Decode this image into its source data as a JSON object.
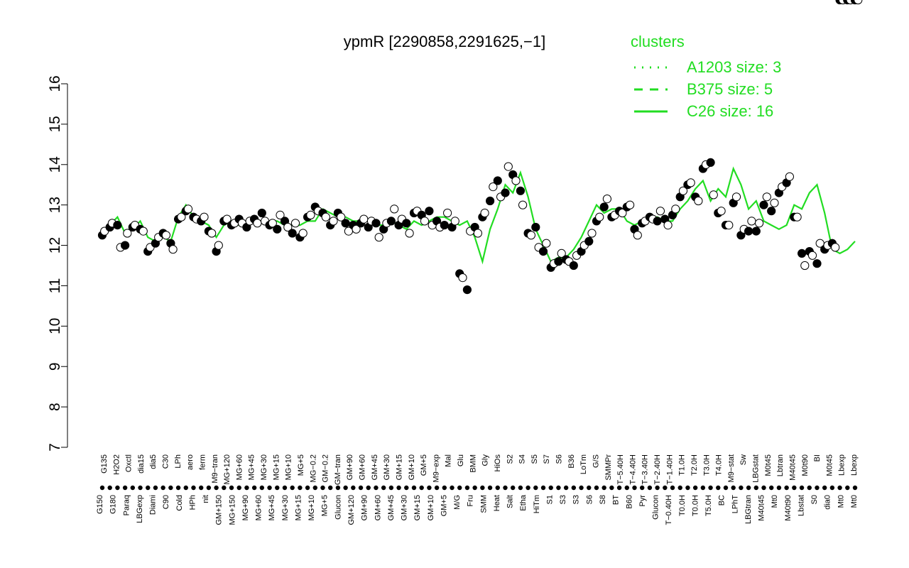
{
  "chart_data": {
    "type": "line",
    "title": "ypmR [2290858,2291625,−1]",
    "xlabel": "",
    "ylabel": "",
    "ylim": [
      7,
      16
    ],
    "yticks": [
      7,
      8,
      9,
      10,
      11,
      12,
      13,
      14,
      15,
      16
    ],
    "grid": false,
    "legend": {
      "placement": "top-right",
      "title": "clusters",
      "entries": [
        {
          "label": "A1203 size: 3",
          "style": "dotted"
        },
        {
          "label": "B375 size: 5",
          "style": "dashed"
        },
        {
          "label": "C26 size: 16",
          "style": "solid"
        }
      ]
    },
    "colors": {
      "series": "#22dd22",
      "points_dark": "#000000",
      "points_light": "#ffffff",
      "axis": "#000000"
    },
    "categories": [
      "G150",
      "G135",
      "G180",
      "H2O2",
      "Paraq",
      "Oxctl",
      "LBGexp",
      "dia15",
      "Diami",
      "dia5",
      "C90",
      "C30",
      "Cold",
      "LPh",
      "HPh",
      "aero",
      "nit",
      "ferm",
      "GM+150",
      "M9−tran",
      "MG+150",
      "MG+120",
      "MG+90",
      "MG+60",
      "MG+45",
      "MG+30",
      "MG+15",
      "MG+10",
      "MG+5",
      "MG−0.2",
      "GM−0.2",
      "Glucon",
      "GM−tran",
      "GM+120",
      "GM+90",
      "GM+60",
      "GM+45",
      "GM+30",
      "GM+15",
      "GM+10",
      "GM+5",
      "M9−exp",
      "M/G",
      "Mal",
      "Fru",
      "Glu",
      "BMM",
      "SMM",
      "Heat",
      "Salt",
      "Etha",
      "Gly",
      "HiTm",
      "HiOs",
      "S1",
      "S2",
      "S3",
      "S4",
      "S5",
      "S6",
      "S7",
      "S8",
      "BT",
      "B36",
      "B60",
      "LoTm",
      "Pyr",
      "G/S",
      "Glucon2",
      "SMMPr",
      "T−5.40H",
      "T−4.40H",
      "T−3.40H",
      "T−2.40H",
      "T−1.40H",
      "T−0.40H",
      "T0.0H",
      "T1.0H",
      "T2.0H",
      "T3.0H",
      "T4.0H",
      "T5.0H",
      "M9−stat",
      "BC",
      "Sw",
      "LPhT",
      "LBGstat",
      "LBGtran",
      "M40t45",
      "M0t45",
      "Lbtran",
      "Mt0",
      "M40t90",
      "M0t90",
      "Lbstat",
      "BI",
      "S0",
      "dia0",
      "Lbexp",
      "M0"
    ],
    "x_tick_labels_upper": [
      "G135",
      "H2O2",
      "Oxctl",
      "dia15",
      "dia5",
      "C30",
      "LPh",
      "aero",
      "ferm",
      "M9−tran",
      "MG+120",
      "MG+60",
      "MG+45",
      "MG+30",
      "MG+15",
      "MG+10",
      "MG+5",
      "MG−0.2",
      "GM−0.2",
      "GM−tran",
      "GM+90",
      "GM+60",
      "GM+45",
      "GM+30",
      "GM+15",
      "GM+10",
      "GM+5",
      "M9−exp",
      "Mal",
      "Glu",
      "BMM",
      "Gly",
      "HiOs",
      "S2",
      "S4",
      "S5",
      "S7",
      "S6",
      "B36",
      "LoTm",
      "G/S",
      "SMMPr",
      "T−5.40H",
      "T−4.40H",
      "T−3.40H",
      "T−2.40H",
      "T−1.40H",
      "T1.0H",
      "T2.0H",
      "T3.0H",
      "T4.0H",
      "M9−stat",
      "Sw",
      "LBGstat",
      "M0t45",
      "Lbtran",
      "M40t45",
      "M0t90",
      "BI",
      "M0t45",
      "Lbexp",
      "Lbexp"
    ],
    "x_tick_labels_lower": [
      "G150",
      "G180",
      "Paraq",
      "LBGexp",
      "Diami",
      "C90",
      "Cold",
      "HPh",
      "nit",
      "GM+150",
      "MG+150",
      "MG+90",
      "MG+60",
      "MG+45",
      "MG+30",
      "MG+15",
      "MG+10",
      "MG+5",
      "Glucon",
      "GM+120",
      "GM+90",
      "GM+60",
      "GM+45",
      "GM+30",
      "GM+15",
      "GM+10",
      "GM+5",
      "M/G",
      "Fru",
      "SMM",
      "Heat",
      "Salt",
      "Etha",
      "HiTm",
      "S1",
      "S3",
      "S3",
      "S6",
      "S8",
      "BT",
      "B60",
      "Pyr",
      "Glucon",
      "T−0.40H",
      "T0.0H",
      "T0.0H",
      "T5.0H",
      "BC",
      "LPhT",
      "LBGtran",
      "M40t45",
      "Mt0",
      "M40t90",
      "Lbstat",
      "S0",
      "dia0",
      "Mt0",
      "Mt0"
    ],
    "series": [
      {
        "name": "cluster mean",
        "line_x": [
          0,
          1,
          2,
          3,
          4,
          5,
          6,
          7,
          8,
          9,
          10,
          11,
          12,
          13,
          14,
          15,
          16,
          17,
          18,
          19,
          20,
          21,
          22,
          23,
          24,
          25,
          26,
          27,
          28,
          29,
          30,
          31,
          32,
          33,
          34,
          35,
          36,
          37,
          38,
          39,
          40,
          41,
          42,
          43,
          44,
          45,
          46,
          47,
          48,
          49,
          50,
          51,
          52,
          53,
          54,
          55,
          56,
          57,
          58,
          59,
          60,
          61,
          62,
          63,
          64,
          65,
          66,
          67,
          68,
          69,
          70,
          71,
          72,
          73,
          74,
          75,
          76,
          77,
          78,
          79,
          80,
          81,
          82,
          83,
          84,
          85,
          86,
          87,
          88,
          89,
          90,
          91,
          92,
          93,
          94,
          95,
          96,
          97,
          98,
          99
        ],
        "line_y": [
          12.35,
          12.5,
          12.7,
          12.3,
          12.4,
          12.6,
          12.2,
          12.1,
          12.2,
          12.1,
          12.7,
          13.0,
          12.7,
          12.6,
          12.5,
          12.2,
          12.5,
          12.6,
          12.5,
          12.5,
          12.6,
          12.6,
          12.6,
          12.6,
          12.5,
          12.5,
          12.5,
          12.6,
          12.6,
          12.9,
          12.8,
          12.7,
          12.7,
          12.6,
          12.6,
          12.6,
          12.5,
          12.5,
          12.6,
          12.5,
          12.4,
          12.6,
          12.5,
          12.6,
          12.7,
          12.7,
          12.6,
          12.5,
          12.6,
          12.2,
          11.6,
          12.4,
          12.9,
          13.5,
          13.3,
          13.8,
          13.2,
          12.4,
          12.0,
          11.6,
          11.7,
          11.7,
          11.9,
          12.2,
          12.6,
          13.0,
          12.8,
          12.9,
          12.9,
          12.6,
          12.5,
          12.6,
          12.7,
          12.7,
          12.6,
          12.6,
          12.9,
          13.1,
          13.4,
          13.6,
          13.1,
          13.4,
          13.2,
          13.9,
          13.5,
          12.9,
          13.1,
          12.6,
          12.5,
          12.4,
          12.5,
          13.0,
          12.9,
          13.3,
          13.5,
          12.8,
          11.9,
          11.8,
          11.9,
          12.1
        ]
      },
      {
        "name": "sample points",
        "points_x": [
          0,
          0.3,
          1,
          1.3,
          2,
          2.4,
          3,
          3.3,
          4,
          4.3,
          5,
          5.4,
          6,
          6.3,
          7,
          7.4,
          8,
          8.4,
          9,
          9.3,
          10,
          10.4,
          11,
          11.3,
          12,
          12.4,
          13,
          13.4,
          14,
          14.4,
          15,
          15.3,
          16,
          16.4,
          17,
          17.4,
          18,
          18.4,
          19,
          19.4,
          20,
          20.4,
          21,
          21.4,
          22,
          22.4,
          23,
          23.4,
          24,
          24.4,
          25,
          25.4,
          26,
          26.4,
          27,
          27.4,
          28,
          28.4,
          29,
          29.4,
          30,
          30.4,
          31,
          31.4,
          32,
          32.4,
          33,
          33.4,
          34,
          34.4,
          35,
          35.4,
          36,
          36.4,
          37,
          37.4,
          38,
          38.4,
          39,
          39.4,
          40,
          40.4,
          41,
          41.4,
          42,
          42.4,
          43,
          43.4,
          44,
          44.4,
          45,
          45.4,
          46,
          46.4,
          47,
          47.4,
          48,
          48.4,
          49,
          49.4,
          50,
          50.3,
          51,
          51.4,
          52,
          52.4,
          53,
          53.4,
          54,
          54.4,
          55,
          55.3,
          56,
          56.4,
          57,
          57.4,
          58,
          58.4,
          59,
          59.4,
          60,
          60.4,
          61,
          61.4,
          62,
          62.4,
          63,
          63.4,
          64,
          64.4,
          65,
          65.4,
          66,
          66.4,
          67,
          67.4,
          68,
          68.4,
          69,
          69.4,
          70,
          70.4,
          71,
          71.4,
          72,
          72.4,
          73,
          73.4,
          74,
          74.4,
          75,
          75.4,
          76,
          76.4,
          77,
          77.4,
          78,
          78.4,
          79,
          79.4,
          80,
          80.4,
          81,
          81.4,
          82,
          82.4,
          83,
          83.4,
          84,
          84.4,
          85,
          85.4,
          86,
          86.4,
          87,
          87.4,
          88,
          88.4,
          89,
          89.4,
          90,
          90.4,
          91,
          91.4,
          92,
          92.4,
          93,
          93.4,
          94,
          94.4,
          95,
          95.4,
          96,
          96.4,
          97,
          97.4,
          98,
          98.4,
          99,
          99.4
        ],
        "points_y": [
          12.25,
          12.35,
          12.45,
          12.55,
          12.5,
          11.95,
          12.0,
          12.3,
          12.45,
          12.5,
          12.4,
          12.35,
          11.85,
          11.95,
          12.05,
          12.2,
          12.3,
          12.25,
          12.05,
          11.9,
          12.65,
          12.7,
          12.85,
          12.9,
          12.7,
          12.65,
          12.6,
          12.7,
          12.35,
          12.3,
          11.85,
          12.0,
          12.6,
          12.65,
          12.5,
          12.55,
          12.65,
          12.55,
          12.45,
          12.6,
          12.65,
          12.55,
          12.8,
          12.6,
          12.5,
          12.55,
          12.4,
          12.75,
          12.6,
          12.45,
          12.3,
          12.55,
          12.2,
          12.3,
          12.7,
          12.75,
          12.95,
          12.85,
          12.8,
          12.7,
          12.5,
          12.6,
          12.8,
          12.7,
          12.55,
          12.35,
          12.5,
          12.4,
          12.55,
          12.65,
          12.45,
          12.6,
          12.55,
          12.2,
          12.4,
          12.55,
          12.6,
          12.9,
          12.5,
          12.65,
          12.55,
          12.3,
          12.8,
          12.85,
          12.75,
          12.6,
          12.85,
          12.5,
          12.6,
          12.45,
          12.5,
          12.8,
          12.45,
          12.6,
          11.3,
          11.2,
          10.9,
          12.35,
          12.45,
          12.3,
          12.7,
          12.8,
          13.1,
          13.45,
          13.6,
          13.2,
          13.3,
          13.95,
          13.75,
          13.6,
          13.35,
          13.0,
          12.3,
          12.25,
          12.45,
          11.95,
          11.85,
          12.05,
          11.45,
          11.55,
          11.6,
          11.8,
          11.65,
          11.6,
          11.5,
          11.75,
          11.85,
          12.0,
          12.1,
          12.3,
          12.6,
          12.7,
          12.95,
          13.15,
          12.7,
          12.75,
          12.85,
          12.8,
          12.95,
          13.0,
          12.4,
          12.25,
          12.55,
          12.6,
          12.7,
          12.65,
          12.6,
          12.85,
          12.65,
          12.5,
          12.75,
          12.9,
          13.2,
          13.35,
          13.5,
          13.55,
          13.2,
          13.1,
          13.9,
          14.0,
          14.05,
          13.25,
          12.8,
          12.85,
          12.5,
          12.5,
          13.05,
          13.2,
          12.25,
          12.4,
          12.35,
          12.6,
          12.35,
          12.55,
          13.0,
          13.2,
          12.85,
          13.05,
          13.3,
          13.45,
          13.55,
          13.7,
          12.7,
          12.7,
          11.8,
          11.5,
          11.85,
          11.75,
          11.55,
          12.05,
          11.9,
          12.0,
          12.05,
          11.95
        ]
      }
    ]
  }
}
